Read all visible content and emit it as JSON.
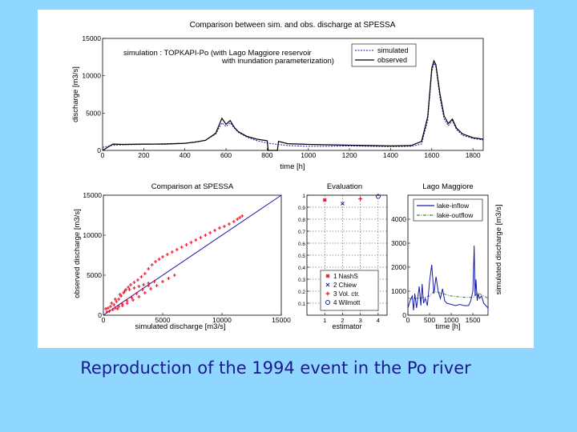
{
  "caption": "Reproduction of the 1994 event in the Po river",
  "colors": {
    "background": "#8fd7ff",
    "sim": "#1a1aa8",
    "obs": "#000000",
    "scatter": "#e8102a",
    "fit": "#1a1aa8",
    "inflow": "#1a1aa8",
    "outflow": "#3a8a3a",
    "caption": "#1a1a8c"
  },
  "chart_data": [
    {
      "id": "top",
      "type": "line",
      "title": "Comparison between sim. and obs. discharge at SPESSA",
      "subtitle_line1": "simulation : TOPKAPI-Po   (with Lago Maggiore reservoir",
      "subtitle_line2": "with inundation parameterization)",
      "xlabel": "time [h]",
      "ylabel": "discharge [m3/s]",
      "xlim": [
        0,
        1850
      ],
      "ylim": [
        0,
        15000
      ],
      "xticks": [
        0,
        200,
        400,
        600,
        800,
        1000,
        1200,
        1400,
        1600,
        1800
      ],
      "yticks": [
        0,
        5000,
        10000,
        15000
      ],
      "legend": [
        "simulated",
        "observed"
      ],
      "series": [
        {
          "name": "simulated",
          "style": "dotted",
          "x": [
            0,
            50,
            100,
            200,
            300,
            400,
            450,
            500,
            550,
            580,
            600,
            620,
            640,
            660,
            700,
            750,
            800,
            850,
            900,
            1000,
            1100,
            1200,
            1300,
            1400,
            1500,
            1550,
            1580,
            1600,
            1610,
            1620,
            1640,
            1660,
            1680,
            1700,
            1720,
            1750,
            1800,
            1850
          ],
          "y": [
            400,
            700,
            750,
            800,
            900,
            950,
            1150,
            1350,
            2200,
            3700,
            3200,
            3700,
            3000,
            2400,
            1800,
            1300,
            1000,
            800,
            650,
            550,
            550,
            600,
            550,
            500,
            550,
            850,
            4000,
            10500,
            11700,
            11200,
            7000,
            4200,
            3300,
            4000,
            2800,
            2000,
            1600,
            1400
          ]
        },
        {
          "name": "observed",
          "style": "solid",
          "x": [
            0,
            50,
            100,
            200,
            300,
            400,
            450,
            500,
            550,
            580,
            600,
            620,
            640,
            660,
            700,
            750,
            800,
            805,
            850,
            855,
            900,
            1000,
            1100,
            1200,
            1300,
            1400,
            1500,
            1550,
            1580,
            1600,
            1610,
            1620,
            1640,
            1660,
            1680,
            1700,
            1720,
            1750,
            1800,
            1850
          ],
          "y": [
            0,
            850,
            800,
            850,
            850,
            950,
            1100,
            1350,
            2300,
            4300,
            3500,
            4000,
            3100,
            2500,
            1900,
            1500,
            1300,
            0,
            0,
            1200,
            900,
            800,
            750,
            700,
            650,
            600,
            650,
            1200,
            4500,
            11000,
            12000,
            11500,
            7500,
            4600,
            3600,
            4200,
            3000,
            2200,
            1700,
            1500
          ]
        }
      ]
    },
    {
      "id": "scatter",
      "type": "scatter",
      "title": "Comparison at SPESSA",
      "xlabel": "simulated discharge [m3/s]",
      "ylabel": "observed discharge [m3/s]",
      "xlim": [
        0,
        15000
      ],
      "ylim": [
        0,
        15000
      ],
      "xticks": [
        0,
        5000,
        10000,
        15000
      ],
      "yticks": [
        0,
        5000,
        10000,
        15000
      ],
      "fit_line": [
        [
          0,
          0
        ],
        [
          15000,
          15000
        ]
      ],
      "points_x": [
        200,
        400,
        600,
        900,
        1100,
        1300,
        1500,
        1700,
        1900,
        2100,
        2300,
        2600,
        2900,
        3200,
        3500,
        3800,
        4100,
        4400,
        4700,
        5000,
        5400,
        5800,
        6200,
        6600,
        7000,
        7400,
        7800,
        8200,
        8600,
        9000,
        9400,
        9800,
        10200,
        10600,
        11000,
        11300,
        11500,
        11700,
        300,
        500,
        800,
        1000,
        1300,
        1600,
        2000,
        2400,
        2800,
        3300,
        3800,
        4300,
        700,
        1000,
        1400,
        1800,
        2200,
        2600,
        3000,
        3400,
        3800,
        1200,
        1600,
        2000,
        2500,
        3000,
        3500,
        4000,
        4500,
        5000,
        5500,
        6000
      ],
      "points_y": [
        800,
        900,
        1100,
        1300,
        1700,
        2000,
        2400,
        2800,
        3200,
        3500,
        3800,
        4100,
        4400,
        4800,
        5200,
        5800,
        6300,
        6700,
        7000,
        7300,
        7600,
        7900,
        8200,
        8500,
        8800,
        9100,
        9400,
        9700,
        10000,
        10300,
        10600,
        10900,
        11100,
        11400,
        11700,
        12000,
        12200,
        12400,
        400,
        500,
        700,
        900,
        1100,
        1400,
        1800,
        2200,
        2700,
        3200,
        3700,
        4200,
        1500,
        2000,
        2600,
        3000,
        3200,
        3400,
        3600,
        3800,
        4000,
        800,
        1200,
        1500,
        1900,
        2300,
        2800,
        3300,
        3700,
        4200,
        4600,
        5000
      ]
    },
    {
      "id": "eval",
      "type": "scatter",
      "title": "Evaluation",
      "xlabel": "estimator",
      "xlim": [
        0,
        4.5
      ],
      "ylim": [
        0,
        1
      ],
      "xticks": [
        1,
        2,
        3,
        4
      ],
      "yticks": [
        0.1,
        0.2,
        0.3,
        0.4,
        0.5,
        0.6,
        0.7,
        0.8,
        0.9,
        1
      ],
      "legend": [
        "1 NashS",
        "2 Chiew",
        "3 Vol. ctr.",
        "4 Wilmott"
      ],
      "markers": [
        "*",
        "x",
        "+",
        "o"
      ],
      "points": [
        {
          "x": 1,
          "y": 0.96
        },
        {
          "x": 2,
          "y": 0.93
        },
        {
          "x": 3,
          "y": 0.97
        },
        {
          "x": 4,
          "y": 0.99
        }
      ]
    },
    {
      "id": "lake",
      "type": "line",
      "title": "Lago Maggiore",
      "xlabel": "time [h]",
      "ylabel": "simulated discharge [m3/s]",
      "xlim": [
        0,
        1850
      ],
      "ylim": [
        0,
        5000
      ],
      "xticks": [
        0,
        500,
        1000,
        1500
      ],
      "yticks": [
        0,
        1000,
        2000,
        3000,
        4000
      ],
      "legend": [
        "lake-inflow",
        "lake-outflow"
      ],
      "series": [
        {
          "name": "lake-inflow",
          "style": "solid",
          "x": [
            0,
            50,
            100,
            130,
            160,
            200,
            260,
            300,
            330,
            360,
            400,
            450,
            500,
            550,
            600,
            650,
            700,
            750,
            800,
            850,
            900,
            1000,
            1100,
            1200,
            1300,
            1400,
            1450,
            1500,
            1530,
            1550,
            1570,
            1600,
            1620,
            1650,
            1700,
            1750,
            1800,
            1850
          ],
          "y": [
            300,
            600,
            800,
            200,
            900,
            300,
            1200,
            400,
            1300,
            500,
            700,
            400,
            1400,
            2100,
            900,
            1600,
            1000,
            700,
            1100,
            600,
            500,
            450,
            400,
            450,
            400,
            400,
            600,
            1000,
            2900,
            800,
            1500,
            600,
            900,
            700,
            800,
            500,
            400,
            300
          ]
        },
        {
          "name": "lake-outflow",
          "style": "dashdot",
          "x": [
            0,
            100,
            200,
            300,
            400,
            500,
            550,
            600,
            700,
            800,
            900,
            1000,
            1100,
            1200,
            1300,
            1400,
            1500,
            1550,
            1600,
            1650,
            1700,
            1800,
            1850
          ],
          "y": [
            700,
            700,
            700,
            720,
            750,
            800,
            900,
            1000,
            950,
            900,
            850,
            800,
            780,
            760,
            750,
            740,
            750,
            800,
            950,
            900,
            850,
            750,
            700
          ]
        }
      ]
    }
  ]
}
